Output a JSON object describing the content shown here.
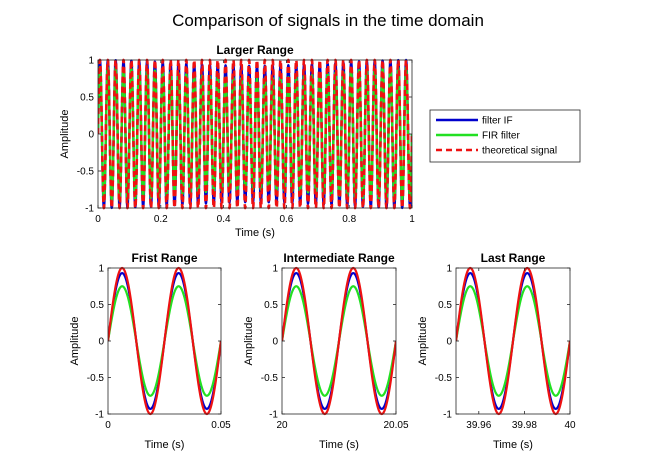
{
  "figure": {
    "title": "Comparison of signals in the time domain"
  },
  "colors": {
    "filter_if": "#0000cc",
    "fir_filter": "#22e022",
    "theoretical": "#ee1111"
  },
  "legend": {
    "placement": "right of top subplot",
    "entries": [
      {
        "label": "filter IF",
        "color": "#0000cc",
        "style": "solid"
      },
      {
        "label": "FIR filter",
        "color": "#22e022",
        "style": "solid"
      },
      {
        "label": "theoretical signal",
        "color": "#ee1111",
        "style": "dashed"
      }
    ]
  },
  "chart_data": [
    {
      "type": "line",
      "title": "Larger Range",
      "xlabel": "Time (s)",
      "ylabel": "Amplitude",
      "xlim": [
        0,
        1
      ],
      "ylim": [
        -1,
        1
      ],
      "xticks": [
        0,
        0.2,
        0.4,
        0.6,
        0.8,
        1
      ],
      "xticklabels": [
        "0",
        "0.2",
        "0.4",
        "0.6",
        "0.8",
        "1"
      ],
      "yticks": [
        -1,
        -0.5,
        0,
        0.5,
        1
      ],
      "yticklabels": [
        "-1",
        "-0.5",
        "0",
        "0.5",
        "1"
      ],
      "frequency_hz": 40,
      "series": [
        {
          "name": "filter IF",
          "amplitude": 0.95,
          "amplitude_min": 0.92,
          "amplitude_max": 1.0,
          "modulation_hz": 1,
          "color": "#0000cc",
          "style": "solid"
        },
        {
          "name": "FIR filter",
          "amplitude": 0.85,
          "amplitude_min": 0.75,
          "amplitude_max": 0.9,
          "modulation_hz": 1,
          "color": "#22e022",
          "style": "solid"
        },
        {
          "name": "theoretical signal",
          "amplitude": 1.0,
          "amplitude_min": 1.0,
          "amplitude_max": 1.0,
          "modulation_hz": 0,
          "color": "#ee1111",
          "style": "dashed"
        }
      ]
    },
    {
      "type": "line",
      "title": "Frist Range",
      "xlabel": "Time (s)",
      "ylabel": "Amplitude",
      "xlim": [
        0,
        0.05
      ],
      "ylim": [
        -1,
        1
      ],
      "xticks": [
        0,
        0.05
      ],
      "xticklabels": [
        "0",
        "0.05"
      ],
      "yticks": [
        -1,
        -0.5,
        0,
        0.5,
        1
      ],
      "yticklabels": [
        "-1",
        "-0.5",
        "0",
        "0.5",
        "1"
      ],
      "frequency_hz": 40,
      "series": [
        {
          "name": "filter IF",
          "amplitude": 0.93,
          "color": "#0000cc",
          "style": "solid"
        },
        {
          "name": "FIR filter",
          "amplitude": 0.75,
          "color": "#22e022",
          "style": "solid"
        },
        {
          "name": "theoretical signal",
          "amplitude": 1.0,
          "color": "#ee1111",
          "style": "solid"
        }
      ]
    },
    {
      "type": "line",
      "title": "Intermediate Range",
      "xlabel": "Time (s)",
      "ylabel": "Amplitude",
      "xlim": [
        20,
        20.05
      ],
      "ylim": [
        -1,
        1
      ],
      "xticks": [
        20,
        20.05
      ],
      "xticklabels": [
        "20",
        "20.05"
      ],
      "yticks": [
        -1,
        -0.5,
        0,
        0.5,
        1
      ],
      "yticklabels": [
        "-1",
        "-0.5",
        "0",
        "0.5",
        "1"
      ],
      "frequency_hz": 40,
      "series": [
        {
          "name": "filter IF",
          "amplitude": 0.93,
          "color": "#0000cc",
          "style": "solid"
        },
        {
          "name": "FIR filter",
          "amplitude": 0.75,
          "color": "#22e022",
          "style": "solid"
        },
        {
          "name": "theoretical signal",
          "amplitude": 1.0,
          "color": "#ee1111",
          "style": "solid"
        }
      ]
    },
    {
      "type": "line",
      "title": "Last Range",
      "xlabel": "Time (s)",
      "ylabel": "Amplitude",
      "xlim": [
        39.95,
        40
      ],
      "ylim": [
        -1,
        1
      ],
      "xticks": [
        39.96,
        39.98,
        40
      ],
      "xticklabels": [
        "39.96",
        "39.98",
        "40"
      ],
      "yticks": [
        -1,
        -0.5,
        0,
        0.5,
        1
      ],
      "yticklabels": [
        "-1",
        "-0.5",
        "0",
        "0.5",
        "1"
      ],
      "frequency_hz": 40,
      "series": [
        {
          "name": "filter IF",
          "amplitude": 0.93,
          "color": "#0000cc",
          "style": "solid"
        },
        {
          "name": "FIR filter",
          "amplitude": 0.75,
          "color": "#22e022",
          "style": "solid"
        },
        {
          "name": "theoretical signal",
          "amplitude": 1.0,
          "color": "#ee1111",
          "style": "solid"
        }
      ]
    }
  ]
}
